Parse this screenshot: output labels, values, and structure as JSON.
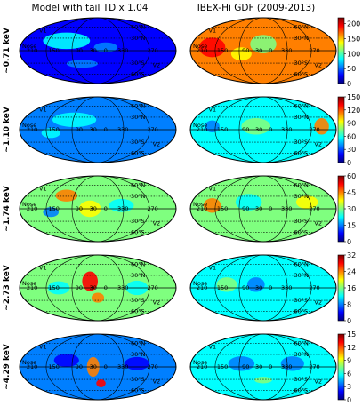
{
  "chart_data": {
    "type": "heatmap",
    "projection": "Mollweide all-sky map",
    "columns": [
      "Model with tail TD x 1.04",
      "IBEX-Hi GDF (2009-2013)"
    ],
    "rows": [
      {
        "energy": "~0.71 keV",
        "vmin": 0,
        "vmax": 220,
        "ticks": [
          0,
          50,
          100,
          150,
          200
        ]
      },
      {
        "energy": "~1.10 keV",
        "vmin": 0,
        "vmax": 150,
        "ticks": [
          0,
          30,
          60,
          90,
          120,
          150
        ]
      },
      {
        "energy": "~1.74 keV",
        "vmin": 0,
        "vmax": 60,
        "ticks": [
          0,
          15,
          30,
          45,
          60
        ]
      },
      {
        "energy": "~2.73 keV",
        "vmin": 0,
        "vmax": 32,
        "ticks": [
          0,
          8,
          16,
          24,
          32
        ]
      },
      {
        "energy": "~4.29 keV",
        "vmin": 0,
        "vmax": 15,
        "ticks": [
          0,
          3,
          6,
          9,
          12,
          15
        ]
      }
    ],
    "map_labels": {
      "latitudes": [
        "60°N",
        "30°N",
        "30°S",
        "60°S"
      ],
      "longitudes": [
        "210",
        "150",
        "90",
        "30",
        "0",
        "330",
        "270"
      ],
      "nose": "Nose",
      "v1": "V1",
      "v2": "V2"
    },
    "colormap": "jet",
    "colormap_colors": [
      "#00007f",
      "#0000ff",
      "#007fff",
      "#00ffff",
      "#7fff7f",
      "#ffff00",
      "#ff7f00",
      "#ff0000",
      "#7f0000"
    ]
  }
}
